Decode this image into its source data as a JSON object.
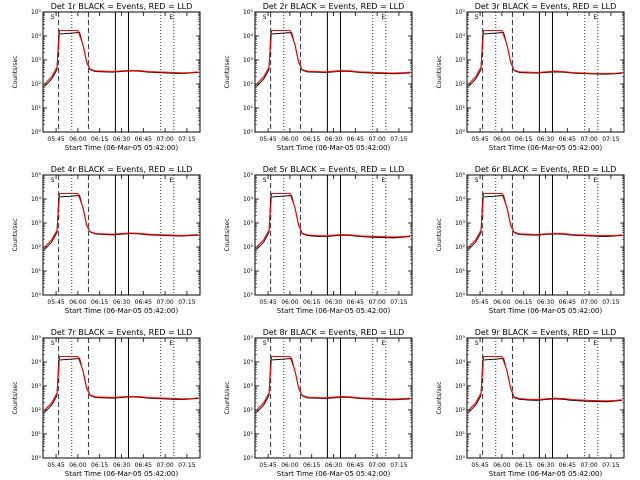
{
  "chart_data": {
    "type": "line",
    "layout": "3x3 grid",
    "shared": {
      "xlabel": "Start Time (06-Mar-05 05:42:00)",
      "ylabel": "Counts/sec",
      "x_tick_labels": [
        "05:45",
        "06:00",
        "06:15",
        "06:30",
        "06:45",
        "07:00",
        "07:15"
      ],
      "x_ticks_minutes": [
        5.75,
        6.0,
        6.25,
        6.5,
        6.75,
        7.0,
        7.25
      ],
      "xlim_hours": [
        5.6,
        7.4
      ],
      "y_scale": "log",
      "ylim": [
        1,
        100000
      ],
      "y_tick_labels": [
        "10⁰",
        "10¹",
        "10²",
        "10³",
        "10⁴",
        "10⁵"
      ],
      "y_ticks": [
        1,
        10,
        100,
        1000,
        10000,
        100000
      ],
      "legend": "in title: BLACK = Events, RED = LLD",
      "event_markers": [
        {
          "label": "S",
          "x_hour": 5.71
        },
        {
          "label": "E",
          "x_hour": 7.07
        }
      ],
      "vertical_lines": [
        {
          "x_hour": 5.78,
          "style": "dashed"
        },
        {
          "x_hour": 5.93,
          "style": "dotted"
        },
        {
          "x_hour": 6.12,
          "style": "dashed"
        },
        {
          "x_hour": 6.43,
          "style": "solid"
        },
        {
          "x_hour": 6.58,
          "style": "solid"
        },
        {
          "x_hour": 6.95,
          "style": "dotted"
        },
        {
          "x_hour": 7.1,
          "style": "dotted"
        }
      ]
    },
    "panels": [
      {
        "title": "Det 1r  BLACK = Events, RED = LLD",
        "series": [
          {
            "name": "Events",
            "color": "#000000",
            "x": [
              5.62,
              5.7,
              5.76,
              5.78,
              6.02,
              6.06,
              6.1,
              6.14,
              6.2,
              6.3,
              6.4,
              6.5,
              6.6,
              6.7,
              6.8,
              6.9,
              7.0,
              7.1,
              7.2,
              7.3,
              7.38
            ],
            "y": [
              80,
              160,
              400,
              12000,
              14000,
              4000,
              800,
              400,
              330,
              320,
              310,
              330,
              350,
              340,
              310,
              300,
              290,
              280,
              270,
              290,
              300
            ]
          },
          {
            "name": "LLD",
            "color": "#ff0000",
            "x": [
              5.62,
              5.7,
              5.76,
              5.79,
              6.0,
              6.06,
              6.1,
              6.14,
              6.2,
              6.3,
              6.4,
              6.5,
              6.6,
              6.7,
              6.8,
              6.9,
              7.0,
              7.1,
              7.2,
              7.3,
              7.38
            ],
            "y": [
              100,
              200,
              500,
              17000,
              17000,
              4200,
              850,
              420,
              350,
              340,
              330,
              350,
              370,
              360,
              330,
              320,
              310,
              300,
              290,
              300,
              320
            ]
          }
        ]
      },
      {
        "title": "Det 2r  BLACK = Events, RED = LLD",
        "series": [
          {
            "name": "Events",
            "color": "#000000",
            "x": [
              5.62,
              5.7,
              5.76,
              5.78,
              6.02,
              6.06,
              6.1,
              6.14,
              6.2,
              6.3,
              6.4,
              6.5,
              6.6,
              6.7,
              6.8,
              6.9,
              7.0,
              7.1,
              7.2,
              7.3,
              7.38
            ],
            "y": [
              80,
              160,
              400,
              12000,
              14000,
              4000,
              800,
              380,
              320,
              310,
              300,
              320,
              340,
              330,
              300,
              290,
              280,
              270,
              265,
              280,
              290
            ]
          },
          {
            "name": "LLD",
            "color": "#ff0000",
            "x": [
              5.62,
              5.7,
              5.76,
              5.79,
              6.0,
              6.06,
              6.1,
              6.14,
              6.2,
              6.3,
              6.4,
              6.5,
              6.6,
              6.7,
              6.8,
              6.9,
              7.0,
              7.1,
              7.2,
              7.3,
              7.38
            ],
            "y": [
              100,
              200,
              500,
              17000,
              17000,
              4200,
              850,
              400,
              340,
              330,
              320,
              340,
              360,
              350,
              320,
              310,
              300,
              290,
              285,
              295,
              310
            ]
          }
        ]
      },
      {
        "title": "Det 3r  BLACK = Events, RED = LLD",
        "series": [
          {
            "name": "Events",
            "color": "#000000",
            "x": [
              5.62,
              5.7,
              5.76,
              5.78,
              6.02,
              6.06,
              6.1,
              6.14,
              6.2,
              6.3,
              6.4,
              6.5,
              6.6,
              6.7,
              6.8,
              6.9,
              7.0,
              7.1,
              7.2,
              7.3,
              7.38
            ],
            "y": [
              80,
              160,
              400,
              12000,
              14000,
              4000,
              800,
              360,
              300,
              290,
              285,
              300,
              320,
              310,
              285,
              275,
              265,
              260,
              255,
              265,
              280
            ]
          },
          {
            "name": "LLD",
            "color": "#ff0000",
            "x": [
              5.62,
              5.7,
              5.76,
              5.79,
              6.0,
              6.06,
              6.1,
              6.14,
              6.2,
              6.3,
              6.4,
              6.5,
              6.6,
              6.7,
              6.8,
              6.9,
              7.0,
              7.1,
              7.2,
              7.3,
              7.38
            ],
            "y": [
              100,
              200,
              500,
              17000,
              17000,
              4200,
              850,
              380,
              320,
              310,
              300,
              320,
              340,
              330,
              300,
              290,
              280,
              275,
              270,
              280,
              295
            ]
          }
        ]
      },
      {
        "title": "Det 4r  BLACK = Events, RED = LLD",
        "series": [
          {
            "name": "Events",
            "color": "#000000",
            "x": [
              5.62,
              5.7,
              5.76,
              5.78,
              6.02,
              6.06,
              6.1,
              6.14,
              6.2,
              6.3,
              6.4,
              6.5,
              6.6,
              6.7,
              6.8,
              6.9,
              7.0,
              7.1,
              7.2,
              7.3,
              7.38
            ],
            "y": [
              80,
              160,
              400,
              12000,
              14000,
              4000,
              800,
              420,
              350,
              330,
              320,
              340,
              360,
              350,
              320,
              310,
              300,
              290,
              285,
              300,
              310
            ]
          },
          {
            "name": "LLD",
            "color": "#ff0000",
            "x": [
              5.62,
              5.7,
              5.76,
              5.79,
              6.0,
              6.06,
              6.1,
              6.14,
              6.2,
              6.3,
              6.4,
              6.5,
              6.6,
              6.7,
              6.8,
              6.9,
              7.0,
              7.1,
              7.2,
              7.3,
              7.38
            ],
            "y": [
              100,
              200,
              500,
              17000,
              17000,
              4200,
              850,
              440,
              370,
              350,
              340,
              360,
              380,
              370,
              340,
              330,
              320,
              310,
              300,
              315,
              330
            ]
          }
        ]
      },
      {
        "title": "Det 5r  BLACK = Events, RED = LLD",
        "series": [
          {
            "name": "Events",
            "color": "#000000",
            "x": [
              5.62,
              5.7,
              5.76,
              5.78,
              6.02,
              6.06,
              6.1,
              6.14,
              6.2,
              6.3,
              6.4,
              6.5,
              6.6,
              6.7,
              6.8,
              6.9,
              7.0,
              7.1,
              7.2,
              7.3,
              7.38
            ],
            "y": [
              80,
              160,
              400,
              12000,
              14000,
              4000,
              800,
              360,
              300,
              280,
              270,
              290,
              310,
              300,
              270,
              260,
              250,
              245,
              240,
              255,
              270
            ]
          },
          {
            "name": "LLD",
            "color": "#ff0000",
            "x": [
              5.62,
              5.7,
              5.76,
              5.79,
              6.0,
              6.06,
              6.1,
              6.14,
              6.2,
              6.3,
              6.4,
              6.5,
              6.6,
              6.7,
              6.8,
              6.9,
              7.0,
              7.1,
              7.2,
              7.3,
              7.38
            ],
            "y": [
              100,
              200,
              500,
              17000,
              17000,
              4200,
              850,
              380,
              320,
              300,
              290,
              310,
              330,
              320,
              290,
              280,
              270,
              265,
              260,
              270,
              285
            ]
          }
        ]
      },
      {
        "title": "Det 6r  BLACK = Events, RED = LLD",
        "series": [
          {
            "name": "Events",
            "color": "#000000",
            "x": [
              5.62,
              5.7,
              5.76,
              5.78,
              6.02,
              6.06,
              6.1,
              6.14,
              6.2,
              6.3,
              6.4,
              6.5,
              6.6,
              6.7,
              6.8,
              6.9,
              7.0,
              7.1,
              7.2,
              7.3,
              7.38
            ],
            "y": [
              80,
              160,
              400,
              12000,
              14000,
              4000,
              800,
              400,
              330,
              320,
              310,
              330,
              350,
              340,
              310,
              300,
              290,
              280,
              275,
              290,
              300
            ]
          },
          {
            "name": "LLD",
            "color": "#ff0000",
            "x": [
              5.62,
              5.7,
              5.76,
              5.79,
              6.0,
              6.06,
              6.1,
              6.14,
              6.2,
              6.3,
              6.4,
              6.5,
              6.6,
              6.7,
              6.8,
              6.9,
              7.0,
              7.1,
              7.2,
              7.3,
              7.38
            ],
            "y": [
              100,
              200,
              500,
              17000,
              17000,
              4200,
              850,
              420,
              350,
              340,
              330,
              350,
              370,
              360,
              330,
              320,
              310,
              300,
              295,
              305,
              320
            ]
          }
        ]
      },
      {
        "title": "Det 7r  BLACK = Events, RED = LLD",
        "series": [
          {
            "name": "Events",
            "color": "#000000",
            "x": [
              5.62,
              5.7,
              5.76,
              5.78,
              6.02,
              6.06,
              6.1,
              6.14,
              6.2,
              6.3,
              6.4,
              6.5,
              6.6,
              6.7,
              6.8,
              6.9,
              7.0,
              7.1,
              7.2,
              7.3,
              7.38
            ],
            "y": [
              80,
              160,
              400,
              12000,
              14000,
              4000,
              800,
              400,
              330,
              320,
              310,
              330,
              350,
              340,
              310,
              300,
              290,
              280,
              270,
              290,
              300
            ]
          },
          {
            "name": "LLD",
            "color": "#ff0000",
            "x": [
              5.62,
              5.7,
              5.76,
              5.79,
              6.0,
              6.06,
              6.1,
              6.14,
              6.2,
              6.3,
              6.4,
              6.5,
              6.6,
              6.7,
              6.8,
              6.9,
              7.0,
              7.1,
              7.2,
              7.3,
              7.38
            ],
            "y": [
              100,
              200,
              500,
              17000,
              17000,
              4200,
              850,
              420,
              350,
              340,
              330,
              350,
              370,
              360,
              330,
              320,
              310,
              300,
              290,
              300,
              320
            ]
          }
        ]
      },
      {
        "title": "Det 8r  BLACK = Events, RED = LLD",
        "series": [
          {
            "name": "Events",
            "color": "#000000",
            "x": [
              5.62,
              5.7,
              5.76,
              5.78,
              6.02,
              6.06,
              6.1,
              6.14,
              6.2,
              6.3,
              6.4,
              6.5,
              6.6,
              6.7,
              6.8,
              6.9,
              7.0,
              7.1,
              7.2,
              7.3,
              7.38
            ],
            "y": [
              80,
              160,
              400,
              12000,
              14000,
              4000,
              800,
              390,
              320,
              310,
              300,
              320,
              340,
              330,
              300,
              290,
              280,
              270,
              265,
              280,
              290
            ]
          },
          {
            "name": "LLD",
            "color": "#ff0000",
            "x": [
              5.62,
              5.7,
              5.76,
              5.79,
              6.0,
              6.06,
              6.1,
              6.14,
              6.2,
              6.3,
              6.4,
              6.5,
              6.6,
              6.7,
              6.8,
              6.9,
              7.0,
              7.1,
              7.2,
              7.3,
              7.38
            ],
            "y": [
              100,
              200,
              500,
              17000,
              17000,
              4200,
              850,
              410,
              340,
              330,
              320,
              340,
              360,
              350,
              320,
              310,
              300,
              290,
              285,
              295,
              310
            ]
          }
        ]
      },
      {
        "title": "Det 9r  BLACK = Events, RED = LLD",
        "series": [
          {
            "name": "Events",
            "color": "#000000",
            "x": [
              5.62,
              5.7,
              5.76,
              5.78,
              6.02,
              6.06,
              6.1,
              6.14,
              6.2,
              6.3,
              6.4,
              6.5,
              6.6,
              6.7,
              6.8,
              6.9,
              7.0,
              7.1,
              7.2,
              7.3,
              7.38
            ],
            "y": [
              80,
              160,
              400,
              12000,
              14000,
              4000,
              800,
              330,
              280,
              260,
              250,
              270,
              290,
              280,
              250,
              240,
              230,
              225,
              220,
              235,
              250
            ]
          },
          {
            "name": "LLD",
            "color": "#ff0000",
            "x": [
              5.62,
              5.7,
              5.76,
              5.79,
              6.0,
              6.06,
              6.1,
              6.14,
              6.2,
              6.3,
              6.4,
              6.5,
              6.6,
              6.7,
              6.8,
              6.9,
              7.0,
              7.1,
              7.2,
              7.3,
              7.38
            ],
            "y": [
              100,
              200,
              500,
              17000,
              17000,
              4200,
              850,
              350,
              300,
              280,
              270,
              290,
              310,
              300,
              270,
              260,
              250,
              245,
              240,
              250,
              265
            ]
          }
        ]
      }
    ]
  }
}
